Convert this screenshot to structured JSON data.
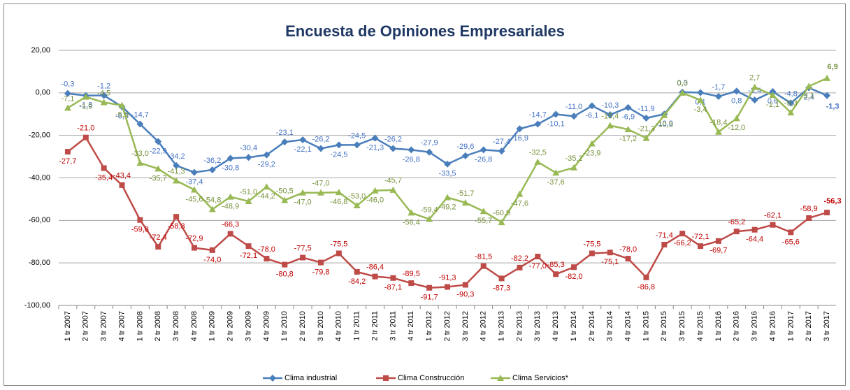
{
  "chart_data": {
    "type": "line",
    "title": "Encuesta de Opiniones Empresariales",
    "categories": [
      "1 tr 2007",
      "2 tr 2007",
      "3 tr 2007",
      "4 tr 2007",
      "1 tr 2008",
      "2 tr 2008",
      "3 tr 2008",
      "4 tr 2008",
      "1 tr 2009",
      "2 tr 2009",
      "3 tr 2009",
      "4 tr 2009",
      "1 tr 2010",
      "2 tr 2010",
      "3 tr 2010",
      "4 tr 2010",
      "1 tr 2011",
      "2 tr 2011",
      "3 tr 2011",
      "4 tr 2011",
      "1 tr 2012",
      "2 tr 2012",
      "3 tr 2012",
      "4 tr 2012",
      "1 tr 2013",
      "2 tr 2013",
      "3 tr 2013",
      "4 tr 2013",
      "1 tr 2014",
      "2 tr 2014",
      "3 tr 2014",
      "4 tr 2014",
      "1 tr 2015",
      "2 tr 2015",
      "3 tr 2015",
      "4 tr 2015",
      "1 tr 2016",
      "2 tr 2016",
      "3 tr 2016",
      "4 tr 2016",
      "1 tr 2017",
      "2 tr 2017",
      "3 tr 2017"
    ],
    "series": [
      {
        "name": "Clima industrial",
        "color": "#4a7ebb",
        "values": [
          -0.3,
          -1.3,
          -1.2,
          -6.5,
          -14.7,
          -22.9,
          -34.2,
          -37.4,
          -36.2,
          -30.8,
          -30.4,
          -29.2,
          -23.1,
          -22.1,
          -26.2,
          -24.5,
          -24.5,
          -21.3,
          -26.2,
          -26.8,
          -27.9,
          -33.5,
          -29.6,
          -26.8,
          -27.4,
          -16.9,
          -14.7,
          -10.1,
          -11.0,
          -6.1,
          -10.3,
          -6.9,
          -11.9,
          -10.0,
          0.3,
          0.1,
          -1.7,
          0.8,
          -3.4,
          0.6,
          -4.8,
          2.4,
          -1.3
        ],
        "value_labels": [
          "-0,3",
          "-1,3",
          "-1,2",
          "-6,5",
          "-14,7",
          "-22,9",
          "-34,2",
          "-37,4",
          "-36,2",
          "-30,8",
          "-30,4",
          "-29,2",
          "-23,1",
          "-22,1",
          "-26,2",
          "-24,5",
          "-24,5",
          "-21,3",
          "-26,2",
          "-26,8",
          "-27,9",
          "-33,5",
          "-29,6",
          "-26,8",
          "-27,4",
          "-16,9",
          "-14,7",
          "-10,1",
          "-11,0",
          "-6,1",
          "-10,3",
          "-6,9",
          "-11,9",
          "-10,0",
          "0,3",
          "0,1",
          "-1,7",
          "0,8",
          "-3,4",
          "0,6",
          "-4,8",
          "2,4",
          "-1,3"
        ]
      },
      {
        "name": "Clima Construcción",
        "color": "#be4b48",
        "values": [
          -27.7,
          -21.0,
          -35.4,
          -43.4,
          -59.8,
          -72.4,
          -58.3,
          -72.9,
          -74.0,
          -66.3,
          -72.1,
          -78.0,
          -80.8,
          -77.5,
          -79.8,
          -75.5,
          -84.2,
          -86.4,
          -87.1,
          -89.5,
          -91.7,
          -91.3,
          -90.3,
          -81.5,
          -87.3,
          -82.2,
          -77.0,
          -85.3,
          -82.0,
          -75.5,
          -75.1,
          -78.0,
          -86.8,
          -71.4,
          -66.2,
          -72.1,
          -69.7,
          -65.2,
          -64.4,
          -62.1,
          -65.6,
          -58.9,
          -56.3
        ],
        "value_labels": [
          "-27,7",
          "-21,0",
          "-35,4",
          "-43,4",
          "-59,8",
          "-72,4",
          "-58,3",
          "-72,9",
          "-74,0",
          "-66,3",
          "-72,1",
          "-78,0",
          "-80,8",
          "-77,5",
          "-79,8",
          "-75,5",
          "-84,2",
          "-86,4",
          "-87,1",
          "-89,5",
          "-91,7",
          "-91,3",
          "-90,3",
          "-81,5",
          "-87,3",
          "-82,2",
          "-77,0",
          "-85,3",
          "-82,0",
          "-75,5",
          "-75,1",
          "-78,0",
          "-86,8",
          "-71,4",
          "-66,2",
          "-72,1",
          "-69,7",
          "-65,2",
          "-64,4",
          "-62,1",
          "-65,6",
          "-58,9",
          "-56,3"
        ]
      },
      {
        "name": "Clima Servicios*",
        "color": "#98b954",
        "values": [
          -7.1,
          -1.9,
          -4.5,
          -5.9,
          -33.0,
          -35.7,
          -41.3,
          -45.6,
          -54.8,
          -48.9,
          -51.0,
          -44.2,
          -50.5,
          -47.0,
          -47.0,
          -46.8,
          -53.0,
          -46.0,
          -45.7,
          -56.4,
          -59.4,
          -49.2,
          -51.7,
          -55.7,
          -60.9,
          -47.6,
          -32.5,
          -37.6,
          -35.2,
          -23.9,
          -15.4,
          -17.2,
          -21.3,
          -10.5,
          0.0,
          -3.4,
          -18.4,
          -12.0,
          2.7,
          -1.1,
          -9.3,
          3.1,
          6.9
        ],
        "value_labels": [
          "-7,1",
          "-1,9",
          "-4,5",
          "-5,9",
          "-33,0",
          "-35,7",
          "-41,3",
          "-45,6",
          "-54,8",
          "-48,9",
          "-51,0",
          "-44,2",
          "-50,5",
          "-47,0",
          "-47,0",
          "-46,8",
          "-53,0",
          "-46,0",
          "-45,7",
          "-56,4",
          "-59,4",
          "-49,2",
          "-51,7",
          "-55,7",
          "-60,9",
          "-47,6",
          "-32,5",
          "-37,6",
          "-35,2",
          "-23,9",
          "-15,4",
          "-17,2",
          "-21,3",
          "-10,5",
          "0,0",
          "-3,4",
          "-18,4",
          "-12,0",
          "2,7",
          "-1,1",
          "-9,3",
          "3,1",
          "6,9"
        ]
      }
    ],
    "ylim": [
      -100,
      20
    ],
    "yticks": [
      {
        "value": 20,
        "label": "20,00"
      },
      {
        "value": 0,
        "label": "0,00"
      },
      {
        "value": -20,
        "label": "-20,00"
      },
      {
        "value": -40,
        "label": "-40,00"
      },
      {
        "value": -60,
        "label": "-60,00"
      },
      {
        "value": -80,
        "label": "-80,00"
      },
      {
        "value": -100,
        "label": "-100,00"
      }
    ],
    "grid": true,
    "legend": "bottom"
  }
}
